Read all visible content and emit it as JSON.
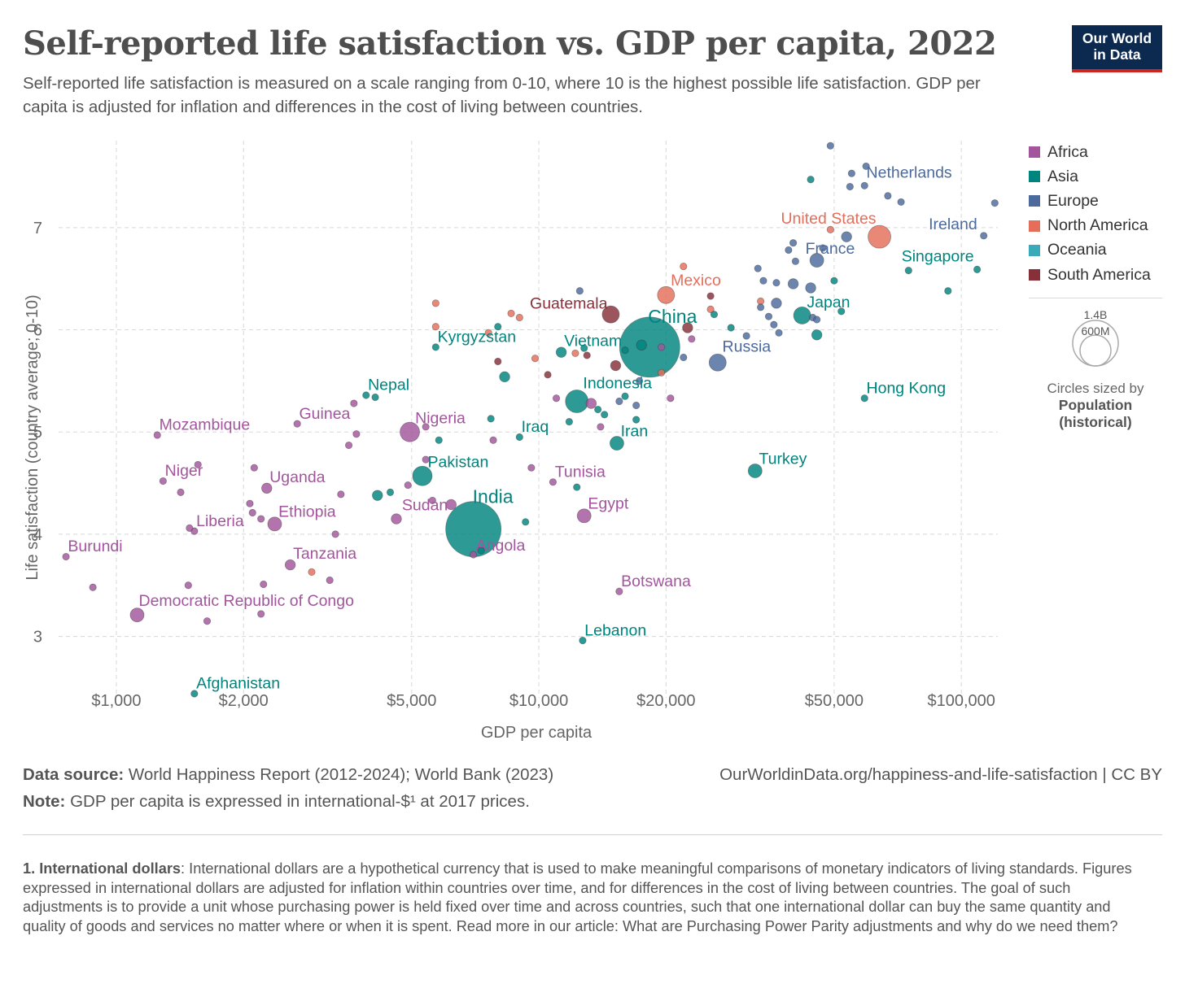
{
  "header": {
    "title": "Self-reported life satisfaction vs. GDP per capita, 2022",
    "subtitle": "Self-reported life satisfaction is measured on a scale ranging from 0-10, where 10 is the highest possible life satisfaction. GDP per capita is adjusted for inflation and differences in the cost of living between countries.",
    "logo_line1": "Our World",
    "logo_line2": "in Data",
    "logo_bg": "#0c2a4f",
    "logo_accent": "#ce261e"
  },
  "legend": {
    "items": [
      {
        "label": "Africa",
        "color": "#a2559c"
      },
      {
        "label": "Asia",
        "color": "#00847e"
      },
      {
        "label": "Europe",
        "color": "#4c6a9c"
      },
      {
        "label": "North America",
        "color": "#e56e5a"
      },
      {
        "label": "Oceania",
        "color": "#38aaba"
      },
      {
        "label": "South America",
        "color": "#883039"
      }
    ],
    "size_big": "1.4B",
    "size_small": "600M",
    "size_caption": "Circles sized by",
    "size_variable": "Population (historical)"
  },
  "footer": {
    "source_label": "Data source:",
    "source_text": "World Happiness Report (2012-2024); World Bank (2023)",
    "url_text": "OurWorldinData.org/happiness-and-life-satisfaction | CC BY",
    "note_label": "Note:",
    "note_text": "GDP per capita is expressed in international-$¹ at 2017 prices.",
    "footnote_label": "1. International dollars",
    "footnote_text": ": International dollars are a hypothetical currency that is used to make meaningful comparisons of monetary indicators of living standards. Figures expressed in international dollars are adjusted for inflation within countries over time, and for differences in the cost of living between countries. The goal of such adjustments is to provide a unit whose purchasing power is held fixed over time and across countries, such that one international dollar can buy the same quantity and quality of goods and services no matter where or when it is spent. Read more in our article: What are Purchasing Power Parity adjustments and why do we need them?"
  },
  "chart_data": {
    "type": "scatter",
    "title": "Self-reported life satisfaction vs. GDP per capita, 2022",
    "xlabel": "GDP per capita",
    "ylabel": "Life satisfaction (country average; 0-10)",
    "x_scale": "log",
    "xlim": [
      730,
      122000
    ],
    "ylim": [
      2.4,
      7.85
    ],
    "x_ticks": [
      1000,
      2000,
      5000,
      10000,
      20000,
      50000,
      100000
    ],
    "x_tick_labels": [
      "$1,000",
      "$2,000",
      "$5,000",
      "$10,000",
      "$20,000",
      "$50,000",
      "$100,000"
    ],
    "y_ticks": [
      3,
      4,
      5,
      6,
      7
    ],
    "y_tick_labels": [
      "3",
      "4",
      "5",
      "6",
      "7"
    ],
    "grid": true,
    "legend_position": "right",
    "size_variable": "Population (historical)",
    "points": [
      {
        "x": 1530,
        "y": 2.44,
        "r": 1,
        "c": 1,
        "l": "Afghanistan"
      },
      {
        "x": 12700,
        "y": 2.96,
        "r": 1,
        "c": 1,
        "l": "Lebanon"
      },
      {
        "x": 15500,
        "y": 3.44,
        "r": 1,
        "c": 0,
        "l": "Botswana"
      },
      {
        "x": 1120,
        "y": 3.21,
        "r": 3,
        "c": 0,
        "l": "Democratic Republic of Congo"
      },
      {
        "x": 7000,
        "y": 4.05,
        "r": 11,
        "c": 1,
        "l": "India"
      },
      {
        "x": 7000,
        "y": 3.8,
        "r": 1,
        "c": 0,
        "l": "Angola"
      },
      {
        "x": 12800,
        "y": 4.18,
        "r": 3,
        "c": 0,
        "l": "Egypt"
      },
      {
        "x": 2580,
        "y": 3.7,
        "r": 2,
        "c": 0,
        "l": "Tanzania"
      },
      {
        "x": 6200,
        "y": 4.29,
        "r": 2,
        "c": 0,
        "l": "Sudan"
      },
      {
        "x": 2370,
        "y": 4.1,
        "r": 3,
        "c": 0,
        "l": "Ethiopia"
      },
      {
        "x": 1530,
        "y": 4.03,
        "r": 1,
        "c": 0,
        "l": "Liberia"
      },
      {
        "x": 760,
        "y": 3.78,
        "r": 1,
        "c": 0,
        "l": "Burundi"
      },
      {
        "x": 10800,
        "y": 4.51,
        "r": 1,
        "c": 0,
        "l": "Tunisia"
      },
      {
        "x": 5300,
        "y": 4.57,
        "r": 5,
        "c": 1,
        "l": "Pakistan"
      },
      {
        "x": 2270,
        "y": 4.45,
        "r": 2,
        "c": 0,
        "l": "Uganda"
      },
      {
        "x": 1290,
        "y": 4.52,
        "r": 1,
        "c": 0,
        "l": "Niger"
      },
      {
        "x": 32500,
        "y": 4.62,
        "r": 3,
        "c": 1,
        "l": "Turkey"
      },
      {
        "x": 15300,
        "y": 4.89,
        "r": 3,
        "c": 1,
        "l": "Iran"
      },
      {
        "x": 9000,
        "y": 4.95,
        "r": 1,
        "c": 1,
        "l": "Iraq"
      },
      {
        "x": 4950,
        "y": 5.0,
        "r": 5,
        "c": 0,
        "l": "Nigeria"
      },
      {
        "x": 1250,
        "y": 4.97,
        "r": 1,
        "c": 0,
        "l": "Mozambique"
      },
      {
        "x": 2680,
        "y": 5.08,
        "r": 1,
        "c": 0,
        "l": "Guinea"
      },
      {
        "x": 12300,
        "y": 5.3,
        "r": 6,
        "c": 1,
        "l": "Indonesia"
      },
      {
        "x": 59000,
        "y": 5.33,
        "r": 1,
        "c": 1,
        "l": "Hong Kong"
      },
      {
        "x": 3900,
        "y": 5.36,
        "r": 1,
        "c": 1,
        "l": "Nepal"
      },
      {
        "x": 18300,
        "y": 5.83,
        "r": 12,
        "c": 1,
        "l": "China"
      },
      {
        "x": 11300,
        "y": 5.78,
        "r": 2,
        "c": 1,
        "l": "Vietnam"
      },
      {
        "x": 5700,
        "y": 5.83,
        "r": 1,
        "c": 1,
        "l": "Kyrgyzstan"
      },
      {
        "x": 26500,
        "y": 5.68,
        "r": 4,
        "c": 2,
        "l": "Russia"
      },
      {
        "x": 14800,
        "y": 6.15,
        "r": 4,
        "c": 5,
        "l": "Guatemala"
      },
      {
        "x": 20000,
        "y": 6.34,
        "r": 4,
        "c": 3,
        "l": "Mexico"
      },
      {
        "x": 42000,
        "y": 6.14,
        "r": 4,
        "c": 1,
        "l": "Japan"
      },
      {
        "x": 109000,
        "y": 6.59,
        "r": 1,
        "c": 1,
        "l": "Singapore"
      },
      {
        "x": 45500,
        "y": 6.68,
        "r": 3,
        "c": 2,
        "l": "France"
      },
      {
        "x": 64000,
        "y": 6.91,
        "r": 6,
        "c": 3,
        "l": "United States"
      },
      {
        "x": 113000,
        "y": 6.92,
        "r": 1,
        "c": 2,
        "l": "Ireland"
      },
      {
        "x": 59000,
        "y": 7.41,
        "r": 1,
        "c": 2,
        "l": "Netherlands"
      },
      {
        "x": 49000,
        "y": 7.8,
        "r": 1,
        "c": 2,
        "l": ""
      },
      {
        "x": 55000,
        "y": 7.53,
        "r": 1,
        "c": 2,
        "l": ""
      },
      {
        "x": 59500,
        "y": 7.6,
        "r": 1,
        "c": 2,
        "l": ""
      },
      {
        "x": 44000,
        "y": 7.47,
        "r": 1,
        "c": 1,
        "l": ""
      },
      {
        "x": 54500,
        "y": 7.4,
        "r": 1,
        "c": 2,
        "l": ""
      },
      {
        "x": 67000,
        "y": 7.31,
        "r": 1,
        "c": 2,
        "l": ""
      },
      {
        "x": 72000,
        "y": 7.25,
        "r": 1,
        "c": 2,
        "l": ""
      },
      {
        "x": 120000,
        "y": 7.24,
        "r": 1,
        "c": 2,
        "l": ""
      },
      {
        "x": 53500,
        "y": 6.91,
        "r": 2,
        "c": 2,
        "l": ""
      },
      {
        "x": 49000,
        "y": 6.98,
        "r": 1,
        "c": 3,
        "l": ""
      },
      {
        "x": 40000,
        "y": 6.85,
        "r": 1,
        "c": 2,
        "l": ""
      },
      {
        "x": 47000,
        "y": 6.8,
        "r": 1,
        "c": 2,
        "l": ""
      },
      {
        "x": 39000,
        "y": 6.78,
        "r": 1,
        "c": 2,
        "l": ""
      },
      {
        "x": 40500,
        "y": 6.67,
        "r": 1,
        "c": 2,
        "l": ""
      },
      {
        "x": 33000,
        "y": 6.6,
        "r": 1,
        "c": 2,
        "l": ""
      },
      {
        "x": 50000,
        "y": 6.48,
        "r": 1,
        "c": 1,
        "l": ""
      },
      {
        "x": 75000,
        "y": 6.58,
        "r": 1,
        "c": 1,
        "l": ""
      },
      {
        "x": 93000,
        "y": 6.38,
        "r": 1,
        "c": 1,
        "l": ""
      },
      {
        "x": 22000,
        "y": 6.62,
        "r": 1,
        "c": 3,
        "l": ""
      },
      {
        "x": 36500,
        "y": 6.46,
        "r": 1,
        "c": 2,
        "l": ""
      },
      {
        "x": 40000,
        "y": 6.45,
        "r": 2,
        "c": 2,
        "l": ""
      },
      {
        "x": 44000,
        "y": 6.41,
        "r": 2,
        "c": 2,
        "l": ""
      },
      {
        "x": 34000,
        "y": 6.48,
        "r": 1,
        "c": 2,
        "l": ""
      },
      {
        "x": 36500,
        "y": 6.26,
        "r": 2,
        "c": 2,
        "l": ""
      },
      {
        "x": 33500,
        "y": 6.28,
        "r": 1,
        "c": 3,
        "l": ""
      },
      {
        "x": 25500,
        "y": 6.33,
        "r": 1,
        "c": 5,
        "l": ""
      },
      {
        "x": 25500,
        "y": 6.2,
        "r": 1,
        "c": 3,
        "l": ""
      },
      {
        "x": 33500,
        "y": 6.22,
        "r": 1,
        "c": 2,
        "l": ""
      },
      {
        "x": 35000,
        "y": 6.13,
        "r": 1,
        "c": 2,
        "l": ""
      },
      {
        "x": 26000,
        "y": 6.15,
        "r": 1,
        "c": 1,
        "l": ""
      },
      {
        "x": 44500,
        "y": 6.12,
        "r": 1,
        "c": 2,
        "l": ""
      },
      {
        "x": 52000,
        "y": 6.18,
        "r": 1,
        "c": 1,
        "l": ""
      },
      {
        "x": 45500,
        "y": 6.1,
        "r": 1,
        "c": 2,
        "l": ""
      },
      {
        "x": 22500,
        "y": 6.02,
        "r": 2,
        "c": 5,
        "l": ""
      },
      {
        "x": 28500,
        "y": 6.02,
        "r": 1,
        "c": 1,
        "l": ""
      },
      {
        "x": 36000,
        "y": 6.05,
        "r": 1,
        "c": 2,
        "l": ""
      },
      {
        "x": 37000,
        "y": 5.97,
        "r": 1,
        "c": 2,
        "l": ""
      },
      {
        "x": 45500,
        "y": 5.95,
        "r": 2,
        "c": 1,
        "l": ""
      },
      {
        "x": 31000,
        "y": 5.94,
        "r": 1,
        "c": 2,
        "l": ""
      },
      {
        "x": 23000,
        "y": 5.91,
        "r": 1,
        "c": 0,
        "l": ""
      },
      {
        "x": 17500,
        "y": 5.85,
        "r": 2,
        "c": 1,
        "l": ""
      },
      {
        "x": 16000,
        "y": 5.8,
        "r": 1,
        "c": 1,
        "l": ""
      },
      {
        "x": 19500,
        "y": 5.83,
        "r": 1,
        "c": 0,
        "l": ""
      },
      {
        "x": 22000,
        "y": 5.73,
        "r": 1,
        "c": 2,
        "l": ""
      },
      {
        "x": 13000,
        "y": 5.75,
        "r": 1,
        "c": 5,
        "l": ""
      },
      {
        "x": 12800,
        "y": 5.82,
        "r": 1,
        "c": 1,
        "l": ""
      },
      {
        "x": 15200,
        "y": 5.65,
        "r": 2,
        "c": 5,
        "l": ""
      },
      {
        "x": 19500,
        "y": 5.58,
        "r": 1,
        "c": 3,
        "l": ""
      },
      {
        "x": 17300,
        "y": 5.5,
        "r": 1,
        "c": 2,
        "l": ""
      },
      {
        "x": 12200,
        "y": 5.77,
        "r": 1,
        "c": 3,
        "l": ""
      },
      {
        "x": 9800,
        "y": 5.72,
        "r": 1,
        "c": 3,
        "l": ""
      },
      {
        "x": 10500,
        "y": 5.56,
        "r": 1,
        "c": 5,
        "l": ""
      },
      {
        "x": 8000,
        "y": 5.69,
        "r": 1,
        "c": 5,
        "l": ""
      },
      {
        "x": 8300,
        "y": 5.54,
        "r": 2,
        "c": 1,
        "l": ""
      },
      {
        "x": 8000,
        "y": 6.03,
        "r": 1,
        "c": 1,
        "l": ""
      },
      {
        "x": 8600,
        "y": 6.16,
        "r": 1,
        "c": 3,
        "l": ""
      },
      {
        "x": 9000,
        "y": 6.12,
        "r": 1,
        "c": 3,
        "l": ""
      },
      {
        "x": 7600,
        "y": 5.97,
        "r": 1,
        "c": 3,
        "l": ""
      },
      {
        "x": 5700,
        "y": 6.26,
        "r": 1,
        "c": 3,
        "l": ""
      },
      {
        "x": 5700,
        "y": 6.03,
        "r": 1,
        "c": 3,
        "l": ""
      },
      {
        "x": 12500,
        "y": 6.38,
        "r": 1,
        "c": 2,
        "l": ""
      },
      {
        "x": 11000,
        "y": 5.33,
        "r": 1,
        "c": 0,
        "l": ""
      },
      {
        "x": 13300,
        "y": 5.28,
        "r": 2,
        "c": 0,
        "l": ""
      },
      {
        "x": 14300,
        "y": 5.17,
        "r": 1,
        "c": 1,
        "l": ""
      },
      {
        "x": 15500,
        "y": 5.3,
        "r": 1,
        "c": 2,
        "l": ""
      },
      {
        "x": 16000,
        "y": 5.35,
        "r": 1,
        "c": 1,
        "l": ""
      },
      {
        "x": 17000,
        "y": 5.26,
        "r": 1,
        "c": 2,
        "l": ""
      },
      {
        "x": 17000,
        "y": 5.12,
        "r": 1,
        "c": 1,
        "l": ""
      },
      {
        "x": 20500,
        "y": 5.33,
        "r": 1,
        "c": 0,
        "l": ""
      },
      {
        "x": 13800,
        "y": 5.22,
        "r": 1,
        "c": 1,
        "l": ""
      },
      {
        "x": 11800,
        "y": 5.1,
        "r": 1,
        "c": 1,
        "l": ""
      },
      {
        "x": 14000,
        "y": 5.05,
        "r": 1,
        "c": 0,
        "l": ""
      },
      {
        "x": 7800,
        "y": 4.92,
        "r": 1,
        "c": 0,
        "l": ""
      },
      {
        "x": 7700,
        "y": 5.13,
        "r": 1,
        "c": 1,
        "l": ""
      },
      {
        "x": 5800,
        "y": 4.92,
        "r": 1,
        "c": 1,
        "l": ""
      },
      {
        "x": 5400,
        "y": 5.05,
        "r": 1,
        "c": 0,
        "l": ""
      },
      {
        "x": 5400,
        "y": 4.73,
        "r": 1,
        "c": 0,
        "l": ""
      },
      {
        "x": 9600,
        "y": 4.65,
        "r": 1,
        "c": 0,
        "l": ""
      },
      {
        "x": 12300,
        "y": 4.46,
        "r": 1,
        "c": 1,
        "l": ""
      },
      {
        "x": 4900,
        "y": 4.48,
        "r": 1,
        "c": 0,
        "l": ""
      },
      {
        "x": 4150,
        "y": 4.38,
        "r": 2,
        "c": 1,
        "l": ""
      },
      {
        "x": 4450,
        "y": 4.41,
        "r": 1,
        "c": 1,
        "l": ""
      },
      {
        "x": 4600,
        "y": 4.15,
        "r": 2,
        "c": 0,
        "l": ""
      },
      {
        "x": 5600,
        "y": 4.33,
        "r": 1,
        "c": 0,
        "l": ""
      },
      {
        "x": 3700,
        "y": 4.98,
        "r": 1,
        "c": 0,
        "l": ""
      },
      {
        "x": 3550,
        "y": 4.87,
        "r": 1,
        "c": 0,
        "l": ""
      },
      {
        "x": 3650,
        "y": 5.28,
        "r": 1,
        "c": 0,
        "l": ""
      },
      {
        "x": 4100,
        "y": 5.34,
        "r": 1,
        "c": 1,
        "l": ""
      },
      {
        "x": 3400,
        "y": 4.39,
        "r": 1,
        "c": 0,
        "l": ""
      },
      {
        "x": 3300,
        "y": 4.0,
        "r": 1,
        "c": 0,
        "l": ""
      },
      {
        "x": 2120,
        "y": 4.65,
        "r": 1,
        "c": 0,
        "l": ""
      },
      {
        "x": 2070,
        "y": 4.3,
        "r": 1,
        "c": 0,
        "l": ""
      },
      {
        "x": 2100,
        "y": 4.21,
        "r": 1,
        "c": 0,
        "l": ""
      },
      {
        "x": 2200,
        "y": 4.15,
        "r": 1,
        "c": 0,
        "l": ""
      },
      {
        "x": 1420,
        "y": 4.41,
        "r": 1,
        "c": 0,
        "l": ""
      },
      {
        "x": 1490,
        "y": 4.06,
        "r": 1,
        "c": 0,
        "l": ""
      },
      {
        "x": 1560,
        "y": 4.68,
        "r": 1,
        "c": 0,
        "l": ""
      },
      {
        "x": 1480,
        "y": 3.5,
        "r": 1,
        "c": 0,
        "l": ""
      },
      {
        "x": 880,
        "y": 3.48,
        "r": 1,
        "c": 0,
        "l": ""
      },
      {
        "x": 1640,
        "y": 3.15,
        "r": 1,
        "c": 0,
        "l": ""
      },
      {
        "x": 2200,
        "y": 3.22,
        "r": 1,
        "c": 0,
        "l": ""
      },
      {
        "x": 2230,
        "y": 3.51,
        "r": 1,
        "c": 0,
        "l": ""
      },
      {
        "x": 2900,
        "y": 3.63,
        "r": 1,
        "c": 3,
        "l": ""
      },
      {
        "x": 3200,
        "y": 3.55,
        "r": 1,
        "c": 0,
        "l": ""
      },
      {
        "x": 7300,
        "y": 3.84,
        "r": 1,
        "c": 1,
        "l": ""
      },
      {
        "x": 9300,
        "y": 4.12,
        "r": 1,
        "c": 1,
        "l": ""
      }
    ]
  }
}
